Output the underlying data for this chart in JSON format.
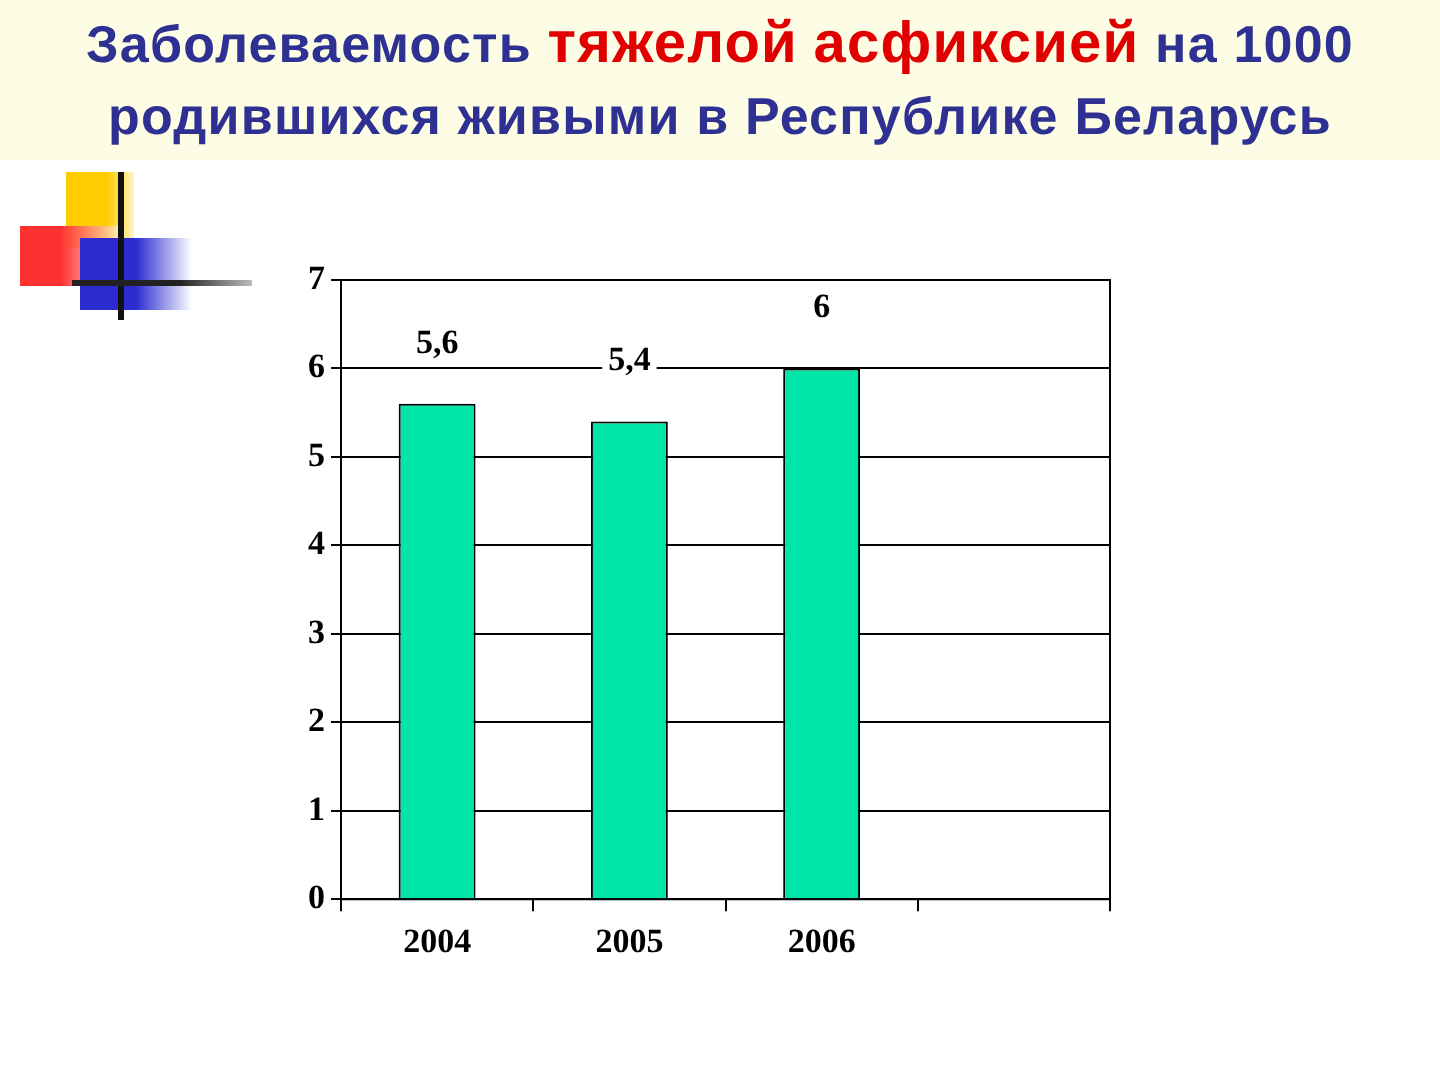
{
  "chart_data": {
    "type": "bar",
    "title": "Заболеваемость тяжелой асфиксией на 1000 родившихся живыми в Республике Беларусь",
    "categories": [
      "2004",
      "2005",
      "2006",
      null
    ],
    "values": [
      5.6,
      5.4,
      6,
      null
    ],
    "color": "#00e6a8",
    "value_labels": [
      "5,6",
      "5,4",
      "6",
      null
    ],
    "ylim": [
      0,
      7
    ],
    "yticks": [
      0,
      1,
      2,
      3,
      4,
      5,
      6,
      7
    ],
    "grid": "y"
  }
}
